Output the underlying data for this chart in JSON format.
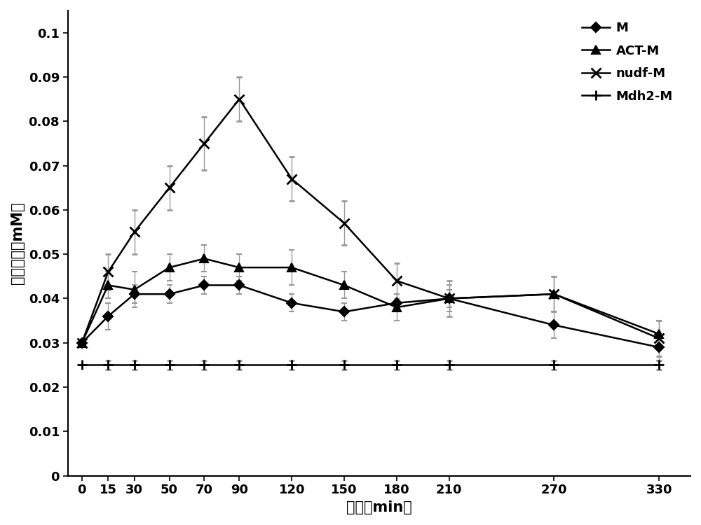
{
  "x": [
    0,
    15,
    30,
    50,
    70,
    90,
    120,
    150,
    180,
    210,
    270,
    330
  ],
  "series_order": [
    "M",
    "ACT-M",
    "nudf-M",
    "Mdh2-M"
  ],
  "series": {
    "M": {
      "y": [
        0.03,
        0.036,
        0.041,
        0.041,
        0.043,
        0.043,
        0.039,
        0.037,
        0.039,
        0.04,
        0.034,
        0.029
      ],
      "yerr": [
        0.0,
        0.003,
        0.002,
        0.002,
        0.002,
        0.002,
        0.002,
        0.002,
        0.002,
        0.002,
        0.003,
        0.003
      ],
      "marker": "D",
      "linestyle": "-",
      "color": "#000000",
      "markersize": 7,
      "linewidth": 1.8,
      "markerfacecolor": "#000000"
    },
    "ACT-M": {
      "y": [
        0.03,
        0.043,
        0.042,
        0.047,
        0.049,
        0.047,
        0.047,
        0.043,
        0.038,
        0.04,
        0.041,
        0.032
      ],
      "yerr": [
        0.0,
        0.003,
        0.004,
        0.003,
        0.003,
        0.003,
        0.004,
        0.003,
        0.003,
        0.003,
        0.004,
        0.003
      ],
      "marker": "^",
      "linestyle": "-",
      "color": "#000000",
      "markersize": 8,
      "linewidth": 1.8,
      "markerfacecolor": "#000000"
    },
    "nudf-M": {
      "y": [
        0.03,
        0.046,
        0.055,
        0.065,
        0.075,
        0.085,
        0.067,
        0.057,
        0.044,
        0.04,
        0.041,
        0.031
      ],
      "yerr": [
        0.0,
        0.004,
        0.005,
        0.005,
        0.006,
        0.005,
        0.005,
        0.005,
        0.004,
        0.004,
        0.004,
        0.004
      ],
      "marker": "x",
      "linestyle": "-",
      "color": "#000000",
      "markersize": 10,
      "linewidth": 1.8,
      "markerfacecolor": "#000000",
      "markeredgewidth": 2.0
    },
    "Mdh2-M": {
      "y": [
        0.025,
        0.025,
        0.025,
        0.025,
        0.025,
        0.025,
        0.025,
        0.025,
        0.025,
        0.025,
        0.025,
        0.025
      ],
      "yerr": [
        0.0,
        0.001,
        0.001,
        0.001,
        0.001,
        0.001,
        0.001,
        0.001,
        0.001,
        0.001,
        0.001,
        0.001
      ],
      "marker": "+",
      "linestyle": "-",
      "color": "#000000",
      "markersize": 10,
      "linewidth": 1.8,
      "markerfacecolor": "#000000",
      "markeredgewidth": 2.0
    }
  },
  "xlabel": "时间（min）",
  "ylabel": "甲醇浓度（mM）",
  "xlim": [
    -8,
    348
  ],
  "ylim": [
    0,
    0.105
  ],
  "yticks": [
    0,
    0.01,
    0.02,
    0.03,
    0.04,
    0.05,
    0.06,
    0.07,
    0.08,
    0.09,
    0.1
  ],
  "ytick_labels": [
    "0",
    "0.01",
    "0.02",
    "0.03",
    "0.04",
    "0.05",
    "0.06",
    "0.07",
    "0.08",
    "0.09",
    "0.1"
  ],
  "xticks": [
    0,
    15,
    30,
    50,
    70,
    90,
    120,
    150,
    180,
    210,
    270,
    330
  ],
  "legend_labels": [
    "M",
    "ACT-M",
    "nudf-M",
    "Mdh2-M"
  ],
  "legend_markers": [
    "D",
    "^",
    "x",
    "+"
  ],
  "legend_linestyles": [
    "-",
    "-",
    "-",
    "-"
  ],
  "legend_marker_sizes": [
    7,
    8,
    10,
    10
  ],
  "legend_markeredgewidths": [
    1.5,
    1.5,
    2.0,
    2.0
  ],
  "ecolor": "#999999",
  "capsize": 3,
  "elinewidth": 1.0,
  "background_color": "#ffffff",
  "figsize": [
    10.0,
    7.5
  ],
  "dpi": 100
}
